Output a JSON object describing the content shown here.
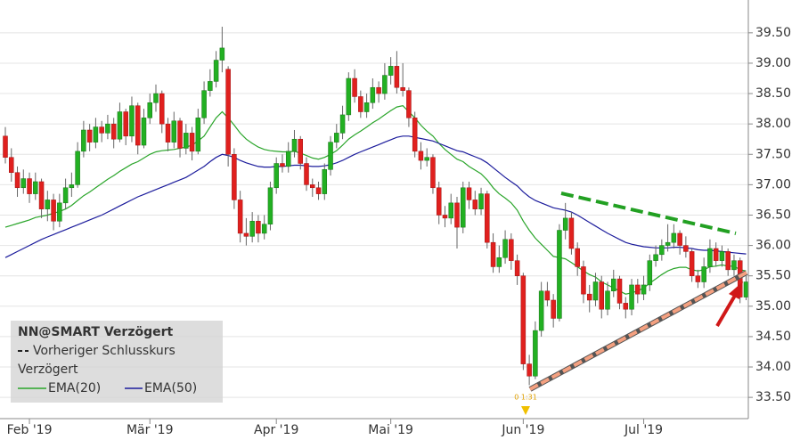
{
  "chart_data": {
    "type": "candlestick",
    "categories": [
      null,
      null,
      null,
      null,
      "Feb '19",
      null,
      null,
      null,
      null,
      null,
      null,
      null,
      null,
      null,
      null,
      null,
      null,
      null,
      null,
      null,
      null,
      null,
      null,
      null,
      "Mär '19",
      null,
      null,
      null,
      null,
      null,
      null,
      null,
      null,
      null,
      null,
      null,
      null,
      null,
      null,
      null,
      null,
      null,
      null,
      null,
      null,
      "Apr '19",
      null,
      null,
      null,
      null,
      null,
      null,
      null,
      null,
      null,
      null,
      null,
      null,
      null,
      null,
      null,
      null,
      null,
      null,
      "Mai '19",
      null,
      null,
      null,
      null,
      null,
      null,
      null,
      null,
      null,
      null,
      null,
      null,
      null,
      null,
      null,
      null,
      null,
      null,
      null,
      null,
      null,
      "Jun '19",
      null,
      null,
      null,
      null,
      null,
      null,
      null,
      null,
      null,
      null,
      null,
      null,
      null,
      null,
      null,
      null,
      null,
      null,
      null,
      "Jul '19",
      null,
      null,
      null,
      null,
      null,
      null,
      null,
      null,
      null,
      null,
      null,
      null,
      null,
      null,
      null,
      null,
      null
    ],
    "ohlc": [
      [
        37.8,
        37.95,
        37.35,
        37.45
      ],
      [
        37.45,
        37.6,
        37.05,
        37.2
      ],
      [
        37.2,
        37.3,
        36.8,
        36.95
      ],
      [
        36.95,
        37.25,
        36.85,
        37.1
      ],
      [
        37.1,
        37.2,
        36.7,
        36.85
      ],
      [
        36.85,
        37.2,
        36.75,
        37.05
      ],
      [
        37.05,
        37.1,
        36.45,
        36.6
      ],
      [
        36.6,
        36.9,
        36.4,
        36.75
      ],
      [
        36.75,
        36.85,
        36.25,
        36.4
      ],
      [
        36.4,
        36.85,
        36.3,
        36.7
      ],
      [
        36.7,
        37.1,
        36.6,
        36.95
      ],
      [
        36.95,
        37.2,
        36.8,
        37.0
      ],
      [
        37.0,
        37.7,
        36.95,
        37.55
      ],
      [
        37.55,
        38.05,
        37.45,
        37.9
      ],
      [
        37.9,
        38.0,
        37.55,
        37.7
      ],
      [
        37.7,
        38.1,
        37.6,
        37.95
      ],
      [
        37.95,
        38.05,
        37.7,
        37.85
      ],
      [
        37.85,
        38.15,
        37.75,
        38.0
      ],
      [
        38.0,
        38.1,
        37.6,
        37.75
      ],
      [
        37.75,
        38.35,
        37.7,
        38.2
      ],
      [
        38.2,
        38.25,
        37.65,
        37.8
      ],
      [
        37.8,
        38.45,
        37.7,
        38.3
      ],
      [
        38.3,
        38.35,
        37.5,
        37.65
      ],
      [
        37.65,
        38.25,
        37.6,
        38.1
      ],
      [
        38.1,
        38.5,
        38.0,
        38.35
      ],
      [
        38.35,
        38.65,
        38.2,
        38.5
      ],
      [
        38.5,
        38.55,
        37.85,
        38.0
      ],
      [
        38.0,
        38.1,
        37.55,
        37.7
      ],
      [
        37.7,
        38.2,
        37.6,
        38.05
      ],
      [
        38.05,
        38.1,
        37.45,
        37.6
      ],
      [
        37.6,
        38.0,
        37.5,
        37.85
      ],
      [
        37.85,
        37.95,
        37.4,
        37.55
      ],
      [
        37.55,
        38.25,
        37.5,
        38.1
      ],
      [
        38.1,
        38.7,
        38.0,
        38.55
      ],
      [
        38.55,
        38.9,
        38.45,
        38.7
      ],
      [
        38.7,
        39.2,
        38.6,
        39.05
      ],
      [
        39.05,
        39.6,
        38.85,
        39.25
      ],
      [
        38.9,
        38.95,
        37.3,
        37.5
      ],
      [
        37.5,
        37.6,
        36.6,
        36.75
      ],
      [
        36.75,
        36.9,
        36.05,
        36.2
      ],
      [
        36.2,
        36.45,
        36.0,
        36.15
      ],
      [
        36.15,
        36.55,
        36.05,
        36.4
      ],
      [
        36.4,
        36.5,
        36.05,
        36.2
      ],
      [
        36.2,
        36.5,
        36.1,
        36.35
      ],
      [
        36.35,
        37.05,
        36.25,
        36.95
      ],
      [
        36.95,
        37.45,
        36.85,
        37.35
      ],
      [
        37.35,
        37.5,
        37.2,
        37.3
      ],
      [
        37.3,
        37.7,
        37.2,
        37.55
      ],
      [
        37.55,
        37.9,
        37.45,
        37.75
      ],
      [
        37.75,
        37.8,
        37.25,
        37.35
      ],
      [
        37.35,
        37.45,
        36.9,
        37.0
      ],
      [
        37.0,
        37.1,
        36.8,
        36.95
      ],
      [
        36.95,
        37.05,
        36.75,
        36.85
      ],
      [
        36.85,
        37.35,
        36.75,
        37.25
      ],
      [
        37.25,
        37.8,
        37.15,
        37.7
      ],
      [
        37.7,
        38.0,
        37.6,
        37.85
      ],
      [
        37.85,
        38.3,
        37.75,
        38.15
      ],
      [
        38.15,
        38.85,
        38.05,
        38.75
      ],
      [
        38.75,
        38.9,
        38.35,
        38.45
      ],
      [
        38.45,
        38.55,
        38.1,
        38.2
      ],
      [
        38.2,
        38.5,
        38.1,
        38.35
      ],
      [
        38.35,
        38.75,
        38.25,
        38.6
      ],
      [
        38.6,
        38.7,
        38.35,
        38.5
      ],
      [
        38.5,
        39.0,
        38.4,
        38.8
      ],
      [
        38.8,
        39.1,
        38.65,
        38.95
      ],
      [
        38.95,
        39.2,
        38.5,
        38.6
      ],
      [
        38.6,
        39.0,
        38.45,
        38.55
      ],
      [
        38.55,
        38.6,
        37.95,
        38.1
      ],
      [
        38.1,
        38.2,
        37.45,
        37.55
      ],
      [
        37.55,
        37.7,
        37.25,
        37.4
      ],
      [
        37.4,
        37.6,
        37.3,
        37.45
      ],
      [
        37.45,
        37.5,
        36.85,
        36.95
      ],
      [
        36.95,
        37.05,
        36.35,
        36.5
      ],
      [
        36.5,
        36.65,
        36.3,
        36.45
      ],
      [
        36.45,
        36.85,
        36.35,
        36.7
      ],
      [
        36.7,
        36.8,
        35.95,
        36.3
      ],
      [
        36.3,
        37.05,
        36.2,
        36.95
      ],
      [
        36.95,
        37.05,
        36.6,
        36.75
      ],
      [
        36.75,
        36.9,
        36.5,
        36.6
      ],
      [
        36.6,
        36.95,
        36.5,
        36.85
      ],
      [
        36.85,
        36.9,
        35.95,
        36.05
      ],
      [
        36.05,
        36.2,
        35.55,
        35.65
      ],
      [
        35.65,
        36.0,
        35.55,
        35.8
      ],
      [
        35.8,
        36.25,
        35.7,
        36.1
      ],
      [
        36.1,
        36.2,
        35.6,
        35.75
      ],
      [
        35.75,
        35.85,
        35.35,
        35.5
      ],
      [
        35.5,
        35.55,
        33.95,
        34.05
      ],
      [
        34.05,
        34.2,
        33.7,
        33.85
      ],
      [
        33.85,
        34.75,
        33.8,
        34.6
      ],
      [
        34.6,
        35.4,
        34.5,
        35.25
      ],
      [
        35.25,
        35.4,
        35.0,
        35.1
      ],
      [
        35.1,
        35.2,
        34.65,
        34.8
      ],
      [
        34.8,
        36.35,
        34.75,
        36.25
      ],
      [
        36.25,
        36.7,
        36.1,
        36.45
      ],
      [
        36.45,
        36.55,
        35.85,
        35.95
      ],
      [
        35.95,
        36.05,
        35.5,
        35.65
      ],
      [
        35.65,
        35.75,
        35.05,
        35.2
      ],
      [
        35.2,
        35.35,
        34.9,
        35.1
      ],
      [
        35.1,
        35.55,
        35.0,
        35.4
      ],
      [
        35.4,
        35.5,
        34.8,
        34.95
      ],
      [
        34.95,
        35.4,
        34.85,
        35.25
      ],
      [
        35.25,
        35.6,
        35.15,
        35.45
      ],
      [
        35.45,
        35.5,
        34.95,
        35.05
      ],
      [
        35.05,
        35.15,
        34.8,
        34.95
      ],
      [
        34.95,
        35.45,
        34.85,
        35.35
      ],
      [
        35.35,
        35.45,
        35.05,
        35.2
      ],
      [
        35.2,
        35.5,
        35.1,
        35.35
      ],
      [
        35.35,
        35.85,
        35.25,
        35.75
      ],
      [
        35.75,
        36.0,
        35.65,
        35.85
      ],
      [
        35.85,
        36.1,
        35.75,
        36.0
      ],
      [
        36.0,
        36.35,
        35.9,
        36.05
      ],
      [
        36.05,
        36.35,
        35.95,
        36.2
      ],
      [
        36.2,
        36.25,
        35.85,
        36.0
      ],
      [
        36.0,
        36.15,
        35.8,
        35.9
      ],
      [
        35.9,
        35.95,
        35.4,
        35.5
      ],
      [
        35.5,
        35.6,
        35.3,
        35.4
      ],
      [
        35.4,
        35.8,
        35.3,
        35.65
      ],
      [
        35.65,
        36.1,
        35.55,
        35.95
      ],
      [
        35.95,
        36.05,
        35.65,
        35.75
      ],
      [
        35.75,
        36.0,
        35.65,
        35.9
      ],
      [
        35.9,
        35.95,
        35.5,
        35.6
      ],
      [
        35.6,
        35.85,
        35.5,
        35.75
      ],
      [
        35.75,
        35.8,
        35.05,
        35.15
      ],
      [
        35.15,
        35.5,
        35.1,
        35.4
      ]
    ],
    "up_color": "#22b022",
    "down_color": "#e0201e",
    "series": [
      {
        "name": "EMA(20)",
        "color": "#2aa52a",
        "values": [
          36.3,
          36.33,
          36.36,
          36.39,
          36.42,
          36.46,
          36.48,
          36.5,
          36.53,
          36.56,
          36.6,
          36.66,
          36.74,
          36.82,
          36.88,
          36.95,
          37.02,
          37.09,
          37.15,
          37.22,
          37.28,
          37.34,
          37.38,
          37.44,
          37.5,
          37.54,
          37.56,
          37.57,
          37.58,
          37.6,
          37.62,
          37.65,
          37.72,
          37.8,
          37.95,
          38.1,
          38.2,
          38.1,
          37.98,
          37.85,
          37.75,
          37.68,
          37.62,
          37.58,
          37.56,
          37.55,
          37.54,
          37.54,
          37.55,
          37.52,
          37.48,
          37.44,
          37.42,
          37.45,
          37.5,
          37.56,
          37.65,
          37.75,
          37.82,
          37.88,
          37.95,
          38.02,
          38.08,
          38.15,
          38.22,
          38.28,
          38.3,
          38.2,
          38.1,
          37.98,
          37.88,
          37.8,
          37.68,
          37.58,
          37.5,
          37.42,
          37.38,
          37.3,
          37.24,
          37.18,
          37.08,
          36.95,
          36.85,
          36.78,
          36.7,
          36.58,
          36.4,
          36.25,
          36.12,
          36.02,
          35.92,
          35.82,
          35.8,
          35.78,
          35.72,
          35.65,
          35.58,
          35.52,
          35.48,
          35.4,
          35.35,
          35.3,
          35.25,
          35.2,
          35.22,
          35.25,
          35.3,
          35.38,
          35.45,
          35.52,
          35.58,
          35.62,
          35.64,
          35.64,
          35.6,
          35.58,
          35.6,
          35.65,
          35.66,
          35.68,
          35.66,
          35.66,
          35.6,
          35.58
        ]
      },
      {
        "name": "EMA(50)",
        "color": "#1c1c9c",
        "values": [
          35.8,
          35.85,
          35.9,
          35.95,
          36.0,
          36.05,
          36.1,
          36.14,
          36.18,
          36.22,
          36.26,
          36.3,
          36.34,
          36.38,
          36.42,
          36.46,
          36.5,
          36.55,
          36.6,
          36.65,
          36.7,
          36.75,
          36.8,
          36.84,
          36.88,
          36.92,
          36.96,
          37.0,
          37.04,
          37.08,
          37.12,
          37.18,
          37.24,
          37.3,
          37.38,
          37.45,
          37.5,
          37.48,
          37.45,
          37.4,
          37.36,
          37.33,
          37.3,
          37.29,
          37.29,
          37.3,
          37.3,
          37.31,
          37.32,
          37.32,
          37.31,
          37.3,
          37.3,
          37.31,
          37.33,
          37.36,
          37.4,
          37.45,
          37.5,
          37.54,
          37.58,
          37.62,
          37.66,
          37.7,
          37.74,
          37.78,
          37.8,
          37.8,
          37.78,
          37.76,
          37.74,
          37.72,
          37.68,
          37.64,
          37.6,
          37.56,
          37.54,
          37.5,
          37.46,
          37.42,
          37.36,
          37.28,
          37.2,
          37.12,
          37.05,
          36.98,
          36.88,
          36.8,
          36.74,
          36.7,
          36.66,
          36.62,
          36.6,
          36.58,
          36.55,
          36.5,
          36.44,
          36.38,
          36.32,
          36.26,
          36.2,
          36.15,
          36.1,
          36.05,
          36.02,
          36.0,
          35.98,
          35.97,
          35.96,
          35.96,
          35.96,
          35.97,
          35.97,
          35.96,
          35.95,
          35.93,
          35.92,
          35.92,
          35.91,
          35.9,
          35.89,
          35.88,
          35.87,
          35.86
        ]
      }
    ],
    "ylim": [
      33.15,
      40.04
    ],
    "yticks": [
      {
        "value": 33.5,
        "label": "33.50"
      },
      {
        "value": 34,
        "label": "34.00"
      },
      {
        "value": 34.5,
        "label": "34.50"
      },
      {
        "value": 35,
        "label": "35.00"
      },
      {
        "value": 35.5,
        "label": "35.50"
      },
      {
        "value": 36,
        "label": "36.00"
      },
      {
        "value": 36.5,
        "label": "36.50"
      },
      {
        "value": 37,
        "label": "37.00"
      },
      {
        "value": 37.5,
        "label": "37.50"
      },
      {
        "value": 38,
        "label": "38.00"
      },
      {
        "value": 38.5,
        "label": "38.50"
      },
      {
        "value": 39,
        "label": "39.00"
      },
      {
        "value": 39.5,
        "label": "39.50"
      }
    ],
    "grid": true,
    "legend_title": "NN@SMART Verzögert",
    "legend_previous_close": "Vorheriger Schlusskurs",
    "legend_group": "Verzögert",
    "annotation": "0 1:31"
  }
}
